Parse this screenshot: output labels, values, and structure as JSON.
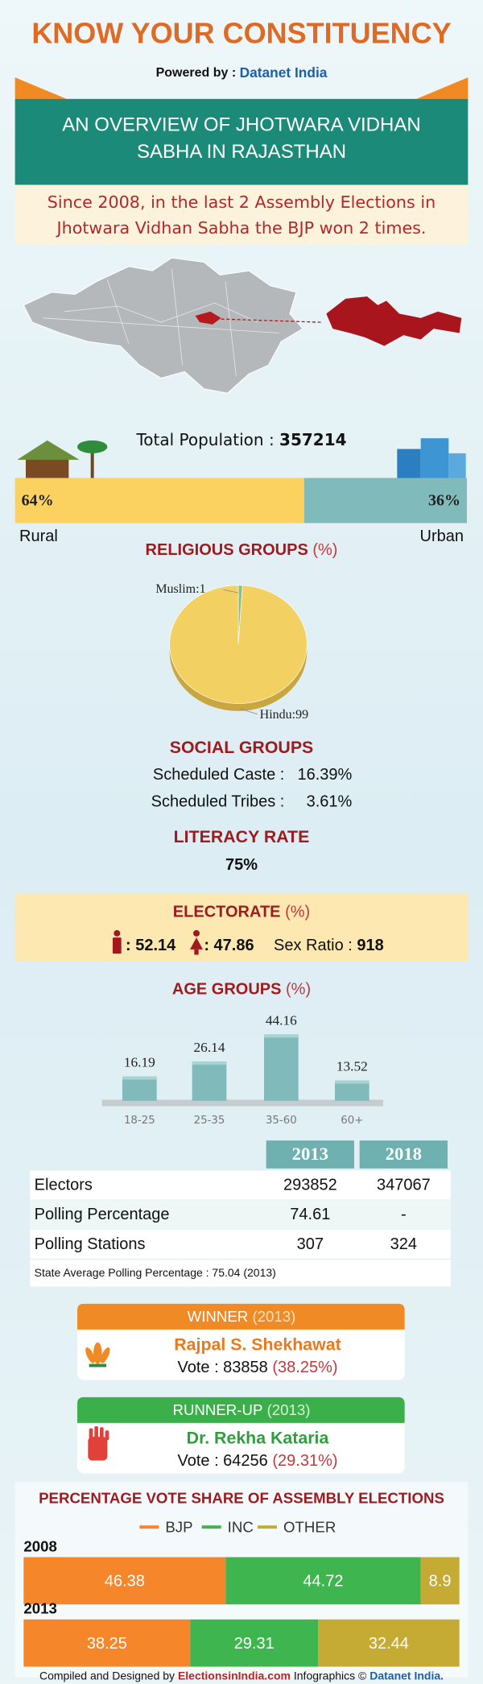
{
  "header": {
    "title": "KNOW YOUR CONSTITUENCY",
    "powered_by_label": "Powered by :",
    "powered_by": "Datanet India"
  },
  "banner": {
    "lines": [
      "AN OVERVIEW OF JHOTWARA VIDHAN",
      "SABHA IN RAJASTHAN"
    ]
  },
  "summary": {
    "lines": [
      "Since 2008, in the last 2 Assembly Elections in",
      "Jhotwara Vidhan Sabha the BJP won 2 times."
    ]
  },
  "population": {
    "label": "Total Population :",
    "total": "357214",
    "groups": [
      {
        "name": "Rural",
        "value": 64,
        "value_label": "64%",
        "color": "#fbd160"
      },
      {
        "name": "Urban",
        "value": 36,
        "value_label": "36%",
        "color": "#80baba"
      }
    ]
  },
  "religious_groups": {
    "type": "pie",
    "title": "RELIGIOUS GROUPS",
    "unit": "(%)",
    "values": [
      1,
      99
    ],
    "value_labels": [
      "Muslim:1",
      "Hindu:99"
    ],
    "colors": [
      "#8cc07a",
      "#f2d062"
    ]
  },
  "social_groups": {
    "title": "SOCIAL GROUPS",
    "items": [
      {
        "label": "Scheduled Caste :",
        "value": "16.39%"
      },
      {
        "label": "Scheduled Tribes :",
        "value": "3.61%"
      }
    ]
  },
  "literacy": {
    "title": "LITERACY RATE",
    "value": "75%"
  },
  "electorate": {
    "title": "ELECTORATE",
    "unit": "(%)",
    "male": ": 52.14",
    "female": ": 47.86",
    "sex_ratio_label": "Sex Ratio :",
    "sex_ratio": "918"
  },
  "age_groups": {
    "type": "bar",
    "title": "AGE GROUPS",
    "unit": "(%)",
    "categories": [
      "18-25",
      "25-35",
      "35-60",
      "60+"
    ],
    "values": [
      16.19,
      26.14,
      44.16,
      13.52
    ],
    "color": "#80baba"
  },
  "polling_table": {
    "columns": [
      "2013",
      "2018"
    ],
    "rows": [
      [
        "Electors",
        "293852",
        "347067"
      ],
      [
        "Polling Percentage",
        "74.61",
        "-"
      ],
      [
        "Polling Stations",
        "307",
        "324"
      ]
    ],
    "footnote": "State Average Polling Percentage : 75.04 (2013)"
  },
  "winner": {
    "title": "WINNER",
    "year": "(2013)",
    "name": "Rajpal S. Shekhawat",
    "vote": "Vote : 83858",
    "share": "(38.25%)"
  },
  "runner_up": {
    "title": "RUNNER-UP",
    "year": "(2013)",
    "name": "Dr. Rekha Kataria",
    "vote": "Vote : 64256",
    "share": "(29.31%)"
  },
  "vote_share": {
    "type": "bar",
    "title": "PERCENTAGE VOTE SHARE OF ASSEMBLY ELECTIONS",
    "categories": [
      "2008",
      "2013"
    ],
    "xlim": [
      0,
      100
    ],
    "series": [
      {
        "name": "BJP",
        "color": "#f5862a",
        "values": [
          46.38,
          38.25
        ]
      },
      {
        "name": "INC",
        "color": "#3fb54f",
        "values": [
          44.72,
          29.31
        ]
      },
      {
        "name": "OTHER",
        "color": "#c5ab34",
        "values": [
          8.9,
          32.44
        ]
      }
    ]
  },
  "footer": {
    "compiled": "Compiled and Designed by",
    "site": "ElectionsinIndia.com",
    "infographics": "Infographics ©",
    "brand": "Datanet India."
  }
}
